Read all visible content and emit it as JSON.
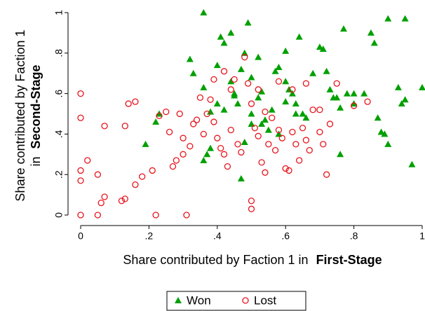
{
  "chart_data": {
    "type": "scatter",
    "xlabel": {
      "text": "Share contributed by Faction 1 in",
      "bold": "First-Stage"
    },
    "ylabel": {
      "text": "Share contributed by Faction 1",
      "prefix": "in",
      "bold": "Second-Stage"
    },
    "xlim": [
      0,
      1
    ],
    "ylim": [
      0,
      1
    ],
    "xticks": [
      0,
      {
        "value": 0.2,
        "label": ".2"
      },
      {
        "value": 0.4,
        "label": ".4"
      },
      {
        "value": 0.6,
        "label": ".6"
      },
      {
        "value": 0.8,
        "label": ".8"
      },
      1
    ],
    "yticks": [
      0,
      {
        "value": 0.2,
        "label": ".2"
      },
      {
        "value": 0.4,
        "label": ".4"
      },
      {
        "value": 0.6,
        "label": ".6"
      },
      {
        "value": 0.8,
        "label": ".8"
      },
      1
    ],
    "grid": false,
    "legend": "bottom",
    "series": [
      {
        "name": "Won",
        "color": "#00a000",
        "marker": "triangle",
        "x": [
          0.19,
          0.22,
          0.23,
          0.32,
          0.33,
          0.36,
          0.36,
          0.38,
          0.38,
          0.37,
          0.4,
          0.41,
          0.42,
          0.44,
          0.44,
          0.45,
          0.45,
          0.46,
          0.47,
          0.48,
          0.49,
          0.5,
          0.5,
          0.52,
          0.53,
          0.53,
          0.54,
          0.56,
          0.57,
          0.58,
          0.6,
          0.6,
          0.61,
          0.62,
          0.63,
          0.63,
          0.64,
          0.65,
          0.66,
          0.68,
          0.7,
          0.71,
          0.72,
          0.73,
          0.74,
          0.75,
          0.76,
          0.76,
          0.77,
          0.78,
          0.8,
          0.8,
          0.83,
          0.85,
          0.86,
          0.87,
          0.89,
          0.9,
          0.9,
          0.93,
          0.94,
          0.95,
          0.97,
          1.0,
          0.47,
          0.4,
          0.42,
          0.5,
          0.55,
          0.58,
          0.36,
          0.6,
          0.88,
          0.95,
          0.52,
          0.48
        ],
        "y": [
          0.35,
          0.46,
          0.5,
          0.77,
          0.7,
          1.0,
          0.63,
          0.51,
          0.33,
          0.3,
          0.74,
          0.88,
          0.85,
          0.9,
          0.66,
          0.59,
          0.6,
          0.55,
          0.72,
          0.8,
          0.95,
          0.68,
          0.5,
          0.58,
          0.61,
          0.45,
          0.47,
          0.52,
          0.71,
          0.73,
          0.66,
          0.56,
          0.62,
          0.6,
          0.5,
          0.55,
          0.88,
          0.5,
          0.48,
          0.7,
          0.83,
          0.82,
          0.71,
          0.62,
          0.58,
          0.58,
          0.3,
          0.53,
          0.92,
          0.6,
          0.55,
          0.6,
          0.6,
          0.9,
          0.85,
          0.48,
          0.4,
          0.35,
          0.97,
          0.63,
          0.55,
          0.97,
          0.25,
          0.63,
          0.18,
          0.55,
          0.52,
          0.45,
          0.42,
          0.4,
          0.27,
          0.81,
          0.41,
          0.57,
          0.78,
          0.36
        ]
      },
      {
        "name": "Lost",
        "color": "#e8141c",
        "marker": "circle",
        "x": [
          0,
          0,
          0,
          0,
          0,
          0.02,
          0.05,
          0.05,
          0.06,
          0.07,
          0.07,
          0.12,
          0.13,
          0.13,
          0.14,
          0.16,
          0.16,
          0.18,
          0.21,
          0.22,
          0.23,
          0.25,
          0.26,
          0.27,
          0.28,
          0.29,
          0.3,
          0.3,
          0.31,
          0.32,
          0.33,
          0.34,
          0.35,
          0.36,
          0.37,
          0.38,
          0.39,
          0.39,
          0.4,
          0.41,
          0.42,
          0.43,
          0.44,
          0.45,
          0.46,
          0.47,
          0.48,
          0.49,
          0.5,
          0.5,
          0.5,
          0.51,
          0.52,
          0.53,
          0.54,
          0.55,
          0.56,
          0.57,
          0.58,
          0.59,
          0.6,
          0.61,
          0.62,
          0.63,
          0.64,
          0.65,
          0.66,
          0.67,
          0.68,
          0.7,
          0.71,
          0.72,
          0.73,
          0.75,
          0.8,
          0.84,
          0.42,
          0.44,
          0.52,
          0.54,
          0.58,
          0.62,
          0.66,
          0.7
        ],
        "y": [
          0.6,
          0.48,
          0.22,
          0.17,
          0.0,
          0.27,
          0.2,
          0.0,
          0.06,
          0.09,
          0.44,
          0.07,
          0.08,
          0.44,
          0.55,
          0.56,
          0.15,
          0.19,
          0.22,
          0.0,
          0.49,
          0.51,
          0.41,
          0.24,
          0.27,
          0.5,
          0.3,
          0.38,
          0.0,
          0.34,
          0.45,
          0.47,
          0.58,
          0.4,
          0.5,
          0.57,
          0.67,
          0.46,
          0.38,
          0.33,
          0.3,
          0.24,
          0.42,
          0.67,
          0.35,
          0.31,
          0.78,
          0.65,
          0.55,
          0.03,
          0.07,
          0.43,
          0.39,
          0.26,
          0.21,
          0.35,
          0.48,
          0.32,
          0.42,
          0.38,
          0.23,
          0.22,
          0.41,
          0.35,
          0.27,
          0.43,
          0.37,
          0.32,
          0.52,
          0.41,
          0.35,
          0.2,
          0.45,
          0.65,
          0.54,
          0.56,
          0.71,
          0.62,
          0.62,
          0.51,
          0.66,
          0.62,
          0.65,
          0.52
        ]
      }
    ]
  }
}
